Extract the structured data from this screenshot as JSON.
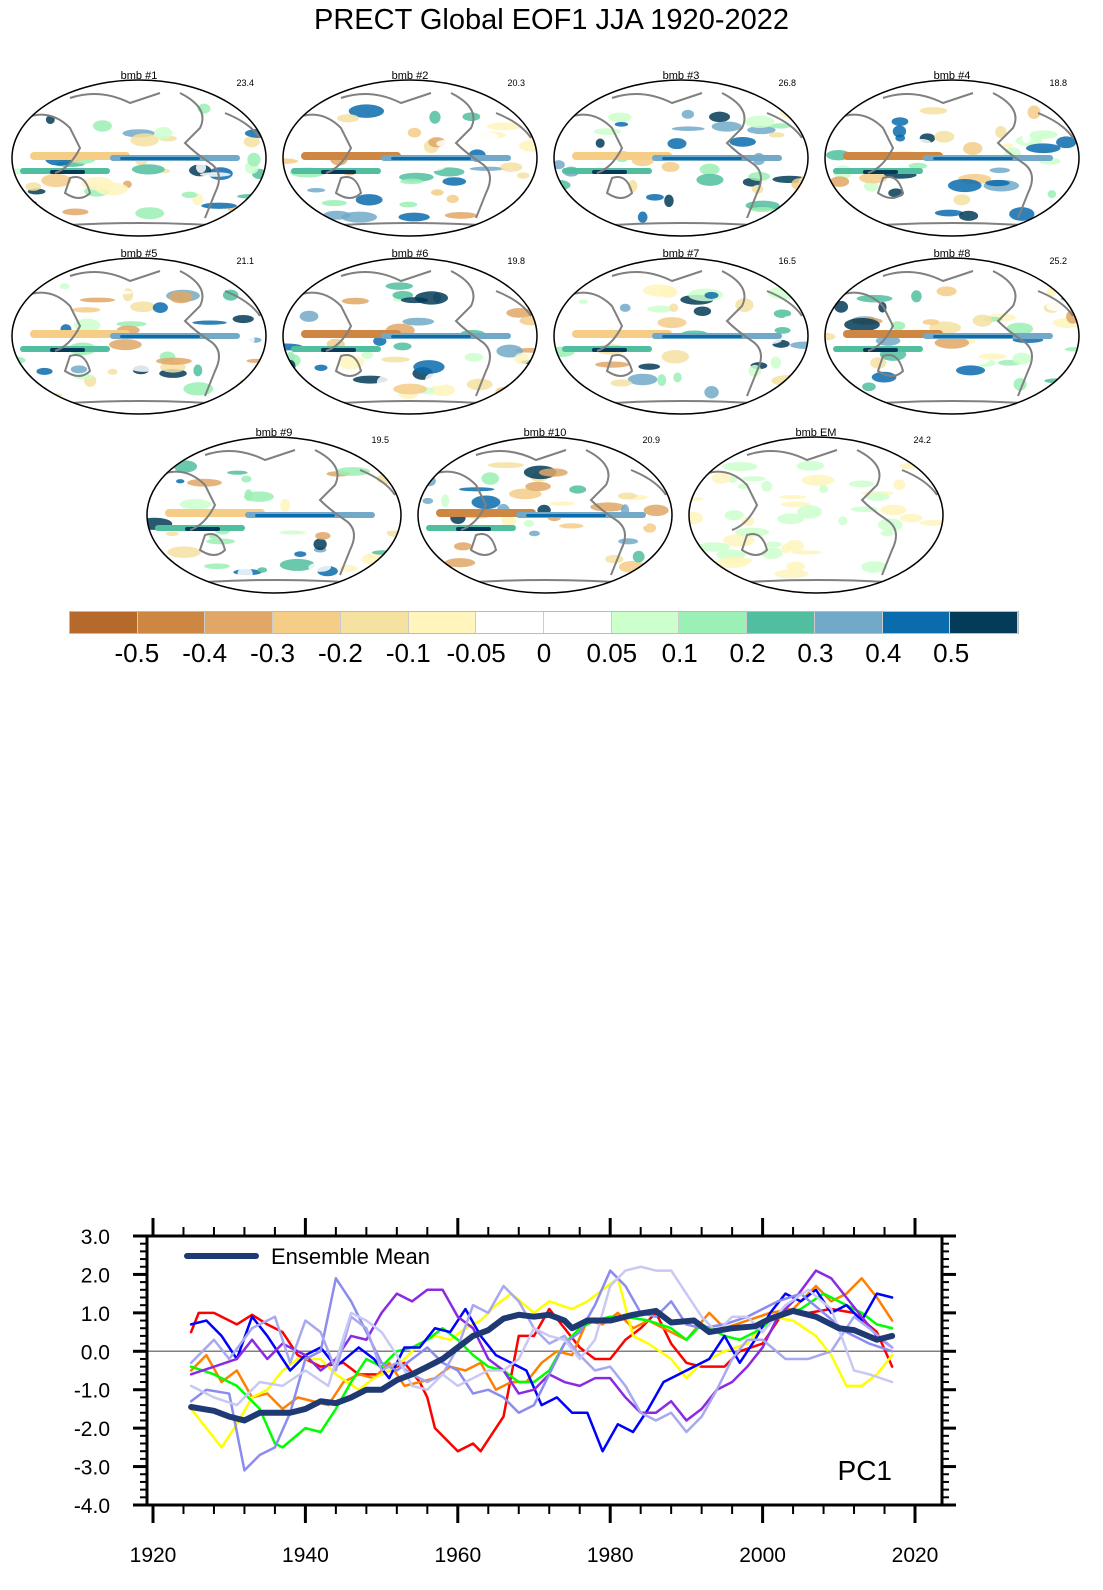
{
  "title": "PRECT Global EOF1 JJA 1920-2022",
  "maps": [
    {
      "label": "bmb #1",
      "pct": "23.4"
    },
    {
      "label": "bmb #2",
      "pct": "20.3"
    },
    {
      "label": "bmb #3",
      "pct": "26.8"
    },
    {
      "label": "bmb #4",
      "pct": "18.8"
    },
    {
      "label": "bmb #5",
      "pct": "21.1"
    },
    {
      "label": "bmb #6",
      "pct": "19.8"
    },
    {
      "label": "bmb #7",
      "pct": "16.5"
    },
    {
      "label": "bmb #8",
      "pct": "25.2"
    },
    {
      "label": "bmb #9",
      "pct": "19.5"
    },
    {
      "label": "bmb #10",
      "pct": "20.9"
    },
    {
      "label": "bmb EM",
      "pct": "24.2"
    }
  ],
  "colorbar": {
    "colors": [
      "#B5692A",
      "#CD8742",
      "#E1A766",
      "#F5CD87",
      "#F5E1A0",
      "#FFF5BD",
      "#FFFFFF",
      "#FFFFFF",
      "#CCFFCC",
      "#9AF0B5",
      "#50BE9F",
      "#72A9C9",
      "#0A6BAD",
      "#033B58"
    ],
    "labels": [
      "-0.5",
      "-0.4",
      "-0.3",
      "-0.2",
      "-0.1",
      "-0.05",
      "0",
      "0.05",
      "0.1",
      "0.2",
      "0.3",
      "0.4",
      "0.5"
    ]
  },
  "chart_data": {
    "type": "line",
    "title": "",
    "annotation": "PC1",
    "legend": {
      "label": "Ensemble Mean",
      "placement": "top-left"
    },
    "xlim": [
      1920,
      2025
    ],
    "ylim": [
      -4.0,
      3.0
    ],
    "xticks": [
      "1920",
      "1940",
      "1960",
      "1980",
      "2000",
      "2020"
    ],
    "yticks": [
      "3.0",
      "2.0",
      "1.0",
      "0.0",
      "-1.0",
      "-2.0",
      "-3.0",
      "-4.0"
    ],
    "series": [
      {
        "name": "member red",
        "color": "#FF0000",
        "x": [
          1925,
          1926,
          1928,
          1931,
          1933,
          1935,
          1937,
          1939,
          1942,
          1945,
          1947,
          1950,
          1953,
          1955,
          1956,
          1957,
          1960,
          1962,
          1963,
          1966,
          1968,
          1970,
          1972,
          1974,
          1976,
          1978,
          1980,
          1982,
          1984,
          1986,
          1988,
          1990,
          1992,
          1995,
          1997,
          2000,
          2003,
          2006,
          2009,
          2012,
          2015,
          2017
        ],
        "y": [
          0.5,
          1.0,
          1.0,
          0.7,
          0.95,
          0.7,
          0.5,
          -0.1,
          -0.4,
          -0.3,
          -0.6,
          -0.6,
          -0.3,
          -0.8,
          -1.2,
          -2.0,
          -2.6,
          -2.4,
          -2.6,
          -1.7,
          0.4,
          0.4,
          1.1,
          0.6,
          0.1,
          -0.2,
          -0.2,
          0.3,
          0.6,
          1.0,
          0.2,
          -0.3,
          -0.4,
          -0.4,
          0.0,
          0.2,
          1.1,
          1.0,
          1.1,
          1.0,
          0.5,
          -0.4
        ]
      },
      {
        "name": "member orange",
        "color": "#FF8000",
        "x": [
          1925,
          1927,
          1929,
          1931,
          1933,
          1935,
          1937,
          1939,
          1941,
          1943,
          1945,
          1947,
          1949,
          1951,
          1953,
          1955,
          1957,
          1959,
          1961,
          1963,
          1965,
          1967,
          1969,
          1971,
          1973,
          1975,
          1977,
          1979,
          1981,
          1983,
          1985,
          1987,
          1990,
          1993,
          1995,
          1998,
          2001,
          2004,
          2007,
          2009,
          2011,
          2013,
          2015,
          2017
        ],
        "y": [
          -0.5,
          -0.1,
          -0.8,
          -0.5,
          -1.2,
          -1.1,
          -1.5,
          -1.2,
          -1.3,
          -1.4,
          -0.8,
          -0.6,
          -0.7,
          -0.3,
          -0.9,
          -0.8,
          -0.7,
          -0.4,
          -0.5,
          -0.3,
          -1.0,
          -0.8,
          -0.8,
          -0.3,
          0.0,
          -0.1,
          0.8,
          0.7,
          1.0,
          0.6,
          0.8,
          0.6,
          0.3,
          1.0,
          0.6,
          0.8,
          1.0,
          1.1,
          1.7,
          1.3,
          1.5,
          1.9,
          1.4,
          0.8
        ]
      },
      {
        "name": "member yellow",
        "color": "#FFFF00",
        "x": [
          1925,
          1927,
          1929,
          1931,
          1933,
          1935,
          1937,
          1939,
          1942,
          1944,
          1947,
          1949,
          1951,
          1953,
          1955,
          1957,
          1959,
          1961,
          1963,
          1965,
          1967,
          1970,
          1972,
          1975,
          1977,
          1979,
          1981,
          1983,
          1985,
          1988,
          1990,
          1992,
          1995,
          1998,
          2001,
          2004,
          2007,
          2009,
          2011,
          2013,
          2015,
          2017
        ],
        "y": [
          -1.5,
          -2.0,
          -2.5,
          -1.9,
          -1.2,
          -1.0,
          -0.5,
          -0.2,
          -0.2,
          -0.6,
          -1.0,
          -0.7,
          -0.5,
          -0.2,
          0.2,
          0.4,
          0.3,
          0.6,
          0.8,
          1.2,
          1.5,
          1.0,
          1.3,
          1.1,
          1.3,
          1.6,
          1.9,
          0.4,
          0.2,
          -0.2,
          -0.7,
          -0.3,
          0.0,
          0.2,
          0.9,
          0.8,
          0.4,
          -0.1,
          -0.9,
          -0.9,
          -0.6,
          -0.1
        ]
      },
      {
        "name": "member green",
        "color": "#00FF00",
        "x": [
          1925,
          1928,
          1931,
          1934,
          1936,
          1937,
          1940,
          1942,
          1944,
          1946,
          1948,
          1950,
          1952,
          1954,
          1956,
          1958,
          1960,
          1962,
          1964,
          1966,
          1968,
          1970,
          1972,
          1974,
          1976,
          1978,
          1980,
          1982,
          1985,
          1988,
          1990,
          1992,
          1995,
          1997,
          1999,
          2002,
          2005,
          2008,
          2011,
          2013,
          2015,
          2017
        ],
        "y": [
          -0.4,
          -0.6,
          -0.9,
          -1.5,
          -2.4,
          -2.5,
          -2.0,
          -2.1,
          -1.5,
          -0.8,
          -0.2,
          -0.4,
          0.0,
          0.1,
          0.3,
          0.6,
          0.3,
          -0.1,
          -0.4,
          -0.5,
          -0.8,
          -0.8,
          -0.5,
          0.2,
          0.6,
          0.8,
          0.9,
          0.9,
          0.8,
          0.6,
          0.3,
          0.7,
          0.4,
          0.3,
          0.5,
          0.9,
          1.1,
          1.5,
          1.2,
          1.0,
          0.7,
          0.6
        ]
      },
      {
        "name": "member blue",
        "color": "#0000FF",
        "x": [
          1925,
          1927,
          1929,
          1931,
          1933,
          1935,
          1938,
          1940,
          1942,
          1944,
          1947,
          1949,
          1951,
          1953,
          1955,
          1957,
          1959,
          1961,
          1963,
          1965,
          1967,
          1969,
          1971,
          1973,
          1975,
          1977,
          1979,
          1981,
          1983,
          1985,
          1987,
          1989,
          1991,
          1993,
          1995,
          1997,
          1999,
          2001,
          2003,
          2005,
          2007,
          2009,
          2011,
          2013,
          2015,
          2017
        ],
        "y": [
          0.7,
          0.8,
          0.4,
          -0.2,
          0.9,
          0.4,
          -0.5,
          -0.1,
          0.1,
          -0.4,
          0.1,
          -0.2,
          -0.7,
          0.1,
          0.1,
          0.6,
          0.5,
          1.1,
          0.4,
          -0.1,
          -0.3,
          -0.5,
          -1.4,
          -1.2,
          -1.6,
          -1.6,
          -2.6,
          -1.9,
          -2.1,
          -1.5,
          -0.8,
          -0.6,
          -0.4,
          -0.2,
          0.4,
          -0.3,
          0.3,
          1.0,
          1.5,
          1.3,
          1.6,
          1.0,
          1.2,
          0.8,
          1.5,
          1.4
        ]
      },
      {
        "name": "member purple",
        "color": "#8A2BE2",
        "x": [
          1925,
          1928,
          1931,
          1933,
          1935,
          1937,
          1940,
          1942,
          1944,
          1946,
          1948,
          1950,
          1952,
          1954,
          1956,
          1958,
          1960,
          1962,
          1964,
          1966,
          1968,
          1970,
          1972,
          1974,
          1976,
          1978,
          1980,
          1982,
          1984,
          1986,
          1988,
          1990,
          1992,
          1994,
          1996,
          1998,
          2000,
          2002,
          2004,
          2007,
          2009,
          2011,
          2013,
          2015,
          2017
        ],
        "y": [
          -0.6,
          -0.4,
          -0.2,
          0.3,
          -0.2,
          0.2,
          -0.1,
          -0.5,
          -0.2,
          0.4,
          0.3,
          1.0,
          1.5,
          1.3,
          1.6,
          1.6,
          0.9,
          0.6,
          -0.2,
          -0.5,
          -1.1,
          -1.0,
          -0.6,
          -0.8,
          -0.9,
          -0.7,
          -0.7,
          -1.2,
          -1.6,
          -1.6,
          -1.3,
          -1.8,
          -1.5,
          -1.0,
          -0.8,
          -0.4,
          0.1,
          0.9,
          1.3,
          2.1,
          1.9,
          1.4,
          0.9,
          0.4,
          0.1
        ]
      },
      {
        "name": "member slateblue",
        "color": "#8C8CF0",
        "x": [
          1925,
          1927,
          1930,
          1932,
          1934,
          1936,
          1938,
          1940,
          1942,
          1944,
          1946,
          1948,
          1950,
          1952,
          1954,
          1956,
          1958,
          1960,
          1962,
          1964,
          1966,
          1968,
          1970,
          1972,
          1974,
          1976,
          1978,
          1980,
          1982,
          1984,
          1986,
          1988,
          1990,
          1992,
          1995,
          1998,
          2000,
          2002,
          2005,
          2008,
          2011,
          2014,
          2017
        ],
        "y": [
          -1.3,
          -1.0,
          -1.1,
          -3.1,
          -2.7,
          -2.5,
          -1.6,
          -0.2,
          0.0,
          1.9,
          1.3,
          0.5,
          -0.3,
          -0.5,
          -0.2,
          0.1,
          -0.3,
          -0.5,
          -1.1,
          -1.0,
          -1.2,
          -1.6,
          -1.4,
          -0.6,
          0.2,
          0.5,
          1.2,
          2.1,
          1.7,
          1.0,
          0.9,
          1.3,
          0.7,
          0.6,
          0.7,
          0.9,
          1.1,
          1.3,
          1.5,
          1.0,
          0.5,
          0.2,
          0.0
        ]
      },
      {
        "name": "member lavender",
        "color": "#A8A8F0",
        "x": [
          1925,
          1928,
          1930,
          1933,
          1936,
          1938,
          1940,
          1942,
          1944,
          1946,
          1948,
          1950,
          1952,
          1954,
          1956,
          1958,
          1960,
          1962,
          1964,
          1966,
          1968,
          1970,
          1972,
          1974,
          1976,
          1978,
          1980,
          1982,
          1984,
          1986,
          1988,
          1990,
          1992,
          1994,
          1996,
          1998,
          2000,
          2003,
          2006,
          2009,
          2012,
          2014,
          2017
        ],
        "y": [
          -0.3,
          0.3,
          -0.2,
          0.6,
          0.9,
          -0.3,
          0.8,
          0.5,
          -0.5,
          0.9,
          0.6,
          -0.5,
          -0.3,
          -0.6,
          -0.8,
          -0.6,
          0.1,
          1.2,
          1.0,
          1.7,
          1.3,
          0.6,
          0.2,
          0.4,
          -0.1,
          -0.5,
          -0.4,
          -0.9,
          -1.6,
          -1.8,
          -1.6,
          -2.1,
          -1.7,
          -1.0,
          -0.2,
          0.3,
          0.3,
          -0.2,
          -0.2,
          0.0,
          0.9,
          0.6,
          0.1
        ]
      },
      {
        "name": "member pale-lavender",
        "color": "#C8C8F5",
        "x": [
          1925,
          1928,
          1931,
          1934,
          1937,
          1940,
          1943,
          1946,
          1948,
          1950,
          1952,
          1954,
          1956,
          1958,
          1960,
          1962,
          1964,
          1966,
          1968,
          1970,
          1972,
          1974,
          1976,
          1978,
          1980,
          1982,
          1984,
          1986,
          1988,
          1990,
          1992,
          1994,
          1996,
          1998,
          2000,
          2003,
          2006,
          2009,
          2012,
          2014,
          2017
        ],
        "y": [
          -0.9,
          -1.2,
          -1.4,
          -0.8,
          -0.9,
          -0.5,
          -0.9,
          1.0,
          0.8,
          0.5,
          -0.1,
          -0.9,
          -1.0,
          -0.6,
          -0.9,
          -0.7,
          -0.5,
          -0.5,
          -0.2,
          0.6,
          0.4,
          0.3,
          -0.2,
          0.3,
          1.7,
          2.1,
          2.2,
          2.1,
          2.1,
          1.5,
          0.9,
          0.5,
          0.9,
          0.9,
          0.5,
          1.2,
          1.6,
          1.1,
          -0.5,
          -0.6,
          -0.8
        ]
      },
      {
        "name": "Ensemble Mean",
        "color": "#1F3A73",
        "x": [
          1925,
          1928,
          1930,
          1932,
          1934,
          1936,
          1938,
          1940,
          1942,
          1944,
          1946,
          1948,
          1950,
          1952,
          1954,
          1956,
          1958,
          1960,
          1962,
          1964,
          1966,
          1968,
          1970,
          1972,
          1974,
          1975,
          1977,
          1980,
          1983,
          1986,
          1988,
          1991,
          1993,
          1996,
          1999,
          2001,
          2004,
          2007,
          2010,
          2012,
          2015,
          2017
        ],
        "y": [
          -1.45,
          -1.55,
          -1.7,
          -1.8,
          -1.6,
          -1.6,
          -1.6,
          -1.5,
          -1.3,
          -1.35,
          -1.2,
          -1.0,
          -1.0,
          -0.75,
          -0.6,
          -0.4,
          -0.2,
          0.1,
          0.4,
          0.55,
          0.85,
          0.95,
          0.9,
          0.95,
          0.8,
          0.6,
          0.8,
          0.8,
          0.95,
          1.05,
          0.75,
          0.8,
          0.5,
          0.6,
          0.65,
          0.85,
          1.05,
          0.9,
          0.6,
          0.55,
          0.3,
          0.4
        ]
      }
    ]
  }
}
